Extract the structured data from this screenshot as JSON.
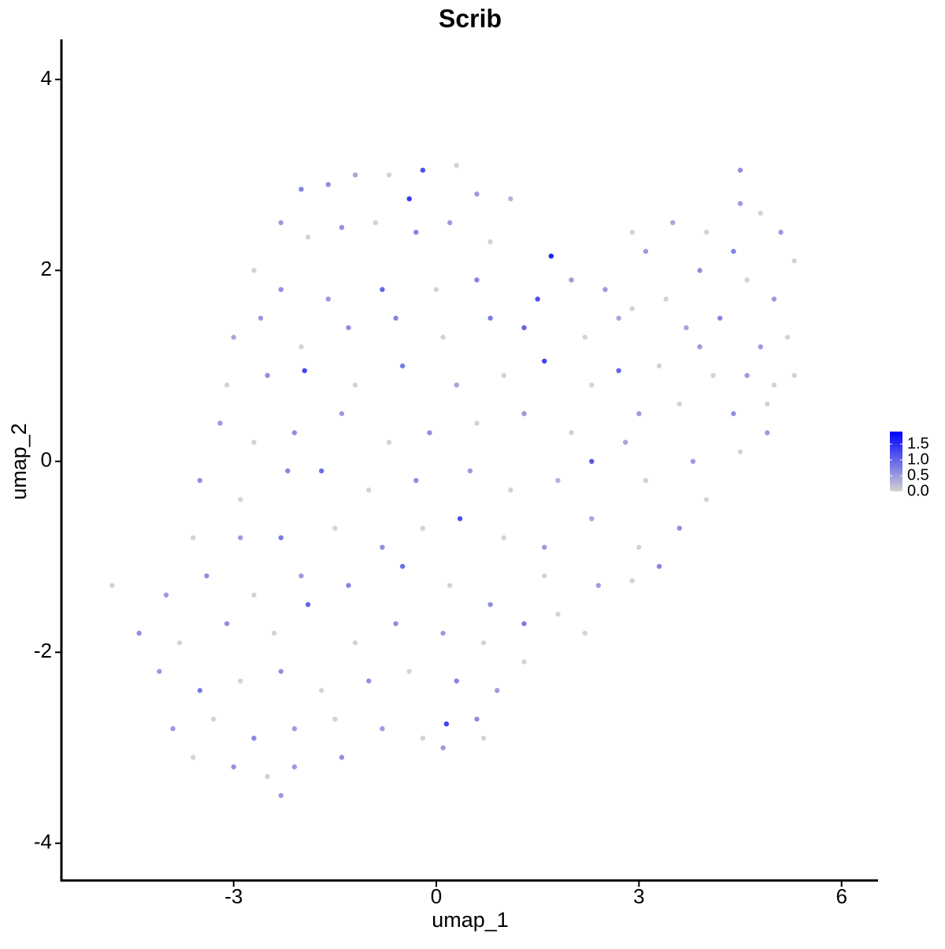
{
  "chart_data": {
    "type": "scatter",
    "title": "Scrib",
    "xlabel": "umap_1",
    "ylabel": "umap_2",
    "xlim": [
      -5.55,
      6.54
    ],
    "xticks": [
      -3,
      0,
      3,
      6
    ],
    "ylim": [
      -4.39,
      4.42
    ],
    "yticks": [
      -4,
      -2,
      0,
      2,
      4
    ],
    "color_low": "#d3d3d3",
    "color_high": "#0000ff",
    "clim": [
      0,
      1.9
    ],
    "cticks": [
      {
        "value": 0,
        "label": "0.0"
      },
      {
        "value": 0.5,
        "label": "0.5"
      },
      {
        "value": 1,
        "label": "1.0"
      },
      {
        "value": 1.5,
        "label": "1.5"
      }
    ],
    "x": [
      -1.6,
      -1.2,
      -0.7,
      -0.2,
      0.3,
      0.6,
      -2.0,
      -0.4,
      -2.3,
      -1.9,
      -1.4,
      -0.9,
      -0.3,
      0.2,
      0.8,
      1.1,
      -2.7,
      -2.3,
      -1.6,
      -0.8,
      0,
      0.6,
      1.5,
      2.0,
      1.7,
      -3.0,
      -2.6,
      -2.0,
      -1.3,
      -0.6,
      0.1,
      0.8,
      1.3,
      2.2,
      2.7,
      -3.1,
      -2.5,
      -1.95,
      -1.2,
      -0.5,
      0.3,
      1.0,
      1.6,
      2.3,
      2.7,
      3.3,
      3.9,
      -3.2,
      -2.7,
      -2.1,
      -1.4,
      -0.7,
      -0.1,
      0.6,
      1.3,
      2.0,
      2.8,
      3.6,
      4.4,
      4.9,
      -3.5,
      -2.9,
      -2.2,
      -1.7,
      -1.0,
      -0.3,
      0.5,
      1.1,
      1.8,
      2.3,
      3.1,
      3.8,
      4.5,
      -3.6,
      -2.9,
      -2.3,
      -1.5,
      -0.8,
      -0.2,
      0.35,
      1.0,
      1.6,
      2.3,
      3.0,
      3.6,
      4.0,
      -4.8,
      -4.0,
      -3.4,
      -2.7,
      -2.0,
      -1.3,
      -0.5,
      0.2,
      0.8,
      1.6,
      2.4,
      2.9,
      3.3,
      -4.4,
      -3.8,
      -3.1,
      -2.4,
      -1.9,
      -1.2,
      -0.6,
      0.1,
      0.7,
      1.3,
      1.8,
      2.2,
      -4.1,
      -3.5,
      -2.9,
      -2.3,
      -1.7,
      -1.0,
      -0.4,
      0.3,
      0.9,
      1.3,
      -3.9,
      -3.3,
      -2.7,
      -2.1,
      -1.5,
      -0.8,
      -0.2,
      0.15,
      0.6,
      0.7,
      -3.6,
      -3.0,
      -2.5,
      -2.1,
      -1.4,
      0.1,
      -2.3,
      3.5,
      4.0,
      4.5,
      4.5,
      4.8,
      5.1,
      5.3,
      3.1,
      3.9,
      4.6,
      5.0,
      5.2,
      3.4,
      4.2,
      4.8,
      5.0,
      2.5,
      2.9,
      4.1,
      4.6,
      3.0,
      4.9,
      5.3,
      2.9,
      4.4,
      3.7
    ],
    "y": [
      2.9,
      3.0,
      3.0,
      3.05,
      3.1,
      2.8,
      2.85,
      2.75,
      2.5,
      2.35,
      2.45,
      2.5,
      2.4,
      2.5,
      2.3,
      2.75,
      2.0,
      1.8,
      1.7,
      1.8,
      1.8,
      1.9,
      1.7,
      1.9,
      2.15,
      1.3,
      1.5,
      1.2,
      1.4,
      1.5,
      1.3,
      1.5,
      1.4,
      1.3,
      1.5,
      0.8,
      0.9,
      0.95,
      0.8,
      1.0,
      0.8,
      0.9,
      1.05,
      0.8,
      0.95,
      1.0,
      1.2,
      0.4,
      0.2,
      0.3,
      0.5,
      0.2,
      0.3,
      0.4,
      0.5,
      0.3,
      0.2,
      0.6,
      0.5,
      0.6,
      -0.2,
      -0.4,
      -0.1,
      -0.1,
      -0.3,
      -0.2,
      -0.1,
      -0.3,
      -0.2,
      0.0,
      -0.2,
      0.0,
      0.1,
      -0.8,
      -0.8,
      -0.8,
      -0.7,
      -0.9,
      -0.7,
      -0.6,
      -0.8,
      -0.9,
      -0.6,
      -0.9,
      -0.7,
      -0.4,
      -1.3,
      -1.4,
      -1.2,
      -1.4,
      -1.2,
      -1.3,
      -1.1,
      -1.3,
      -1.5,
      -1.2,
      -1.3,
      -1.25,
      -1.1,
      -1.8,
      -1.9,
      -1.7,
      -1.8,
      -1.5,
      -1.9,
      -1.7,
      -1.8,
      -1.9,
      -1.7,
      -1.6,
      -1.8,
      -2.2,
      -2.4,
      -2.3,
      -2.2,
      -2.4,
      -2.3,
      -2.2,
      -2.3,
      -2.4,
      -2.1,
      -2.8,
      -2.7,
      -2.9,
      -2.8,
      -2.7,
      -2.8,
      -2.9,
      -2.75,
      -2.7,
      -2.9,
      -3.1,
      -3.2,
      -3.3,
      -3.2,
      -3.1,
      -3.0,
      -3.5,
      2.5,
      2.4,
      2.7,
      3.05,
      2.6,
      2.4,
      2.1,
      2.2,
      2.0,
      1.9,
      1.7,
      1.3,
      1.7,
      1.5,
      1.2,
      0.8,
      1.8,
      1.6,
      0.9,
      0.9,
      0.5,
      0.3,
      0.9,
      2.4,
      2.2,
      1.4
    ],
    "values": [
      0.6,
      0.4,
      0,
      1.2,
      0,
      0.5,
      0.7,
      1.4,
      0.5,
      0,
      0.6,
      0,
      0.7,
      0.5,
      0,
      0.3,
      0,
      0.6,
      0.5,
      1.0,
      0,
      0.7,
      1.2,
      0.5,
      1.6,
      0.4,
      0.5,
      0,
      0.6,
      0.7,
      0,
      0.8,
      1.0,
      0,
      0.4,
      0,
      0.6,
      1.3,
      0,
      0.8,
      0.4,
      0,
      1.3,
      0,
      1.0,
      0,
      0.5,
      0.5,
      0,
      0.6,
      0.5,
      0,
      0.6,
      0,
      0.5,
      0,
      0.4,
      0,
      0.6,
      0,
      0.6,
      0,
      0.7,
      0.9,
      0,
      0.6,
      0.5,
      0,
      0.3,
      1.1,
      0,
      0.5,
      0,
      0,
      0.5,
      0.8,
      0,
      0.6,
      0,
      1.2,
      0,
      0.5,
      0.4,
      0,
      0.6,
      0,
      0,
      0.5,
      0.6,
      0,
      0.5,
      0.7,
      0.9,
      0,
      0.6,
      0,
      0.5,
      0,
      0.7,
      0.6,
      0,
      0.6,
      0,
      1.0,
      0,
      0.6,
      0.5,
      0,
      0.8,
      0,
      0,
      0.5,
      0.8,
      0,
      0.6,
      0,
      0.6,
      0,
      0.7,
      0.5,
      0,
      0.5,
      0,
      0.7,
      0.5,
      0,
      0.5,
      0,
      1.3,
      0.6,
      0,
      0,
      0.6,
      0,
      0.5,
      0.6,
      0.5,
      0.5,
      0.4,
      0,
      0.5,
      0.6,
      0,
      0.5,
      0,
      0.5,
      0.6,
      0,
      0.5,
      0,
      0,
      0.7,
      0.5,
      0,
      0.5,
      0,
      0,
      0.5,
      0.5,
      0.5,
      0,
      0,
      0.7,
      0.4
    ]
  }
}
